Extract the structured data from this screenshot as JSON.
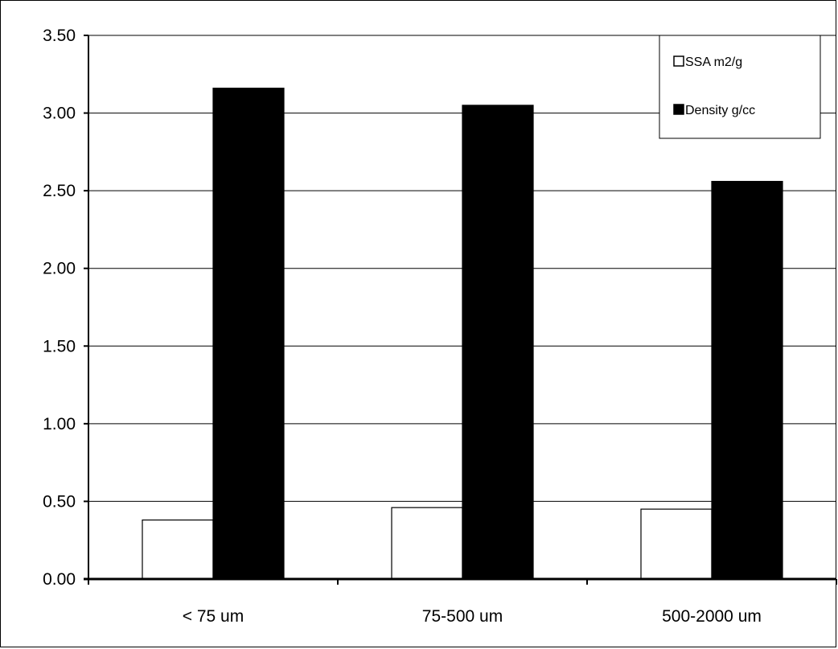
{
  "chart_data": {
    "type": "bar",
    "title": "",
    "xlabel": "",
    "ylabel": "",
    "categories": [
      "< 75 um",
      "75-500 um",
      "500-2000 um"
    ],
    "series": [
      {
        "name": "SSA m2/g",
        "values": [
          0.38,
          0.46,
          0.45
        ],
        "color": "#ffffff"
      },
      {
        "name": "Density g/cc",
        "values": [
          3.16,
          3.05,
          2.56
        ],
        "color": "#000000"
      }
    ],
    "ylim": [
      0,
      3.5
    ],
    "yticks": [
      "0.00",
      "0.50",
      "1.00",
      "1.50",
      "2.00",
      "2.50",
      "3.00",
      "3.50"
    ],
    "grid": true,
    "legend_position": "top-right"
  }
}
